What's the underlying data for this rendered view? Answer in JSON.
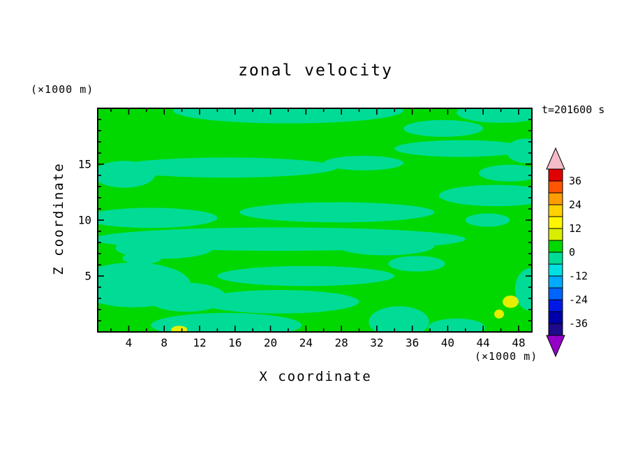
{
  "chart_data": {
    "type": "heatmap",
    "title": "zonal velocity",
    "time_annotation": "t=201600 s",
    "xlabel": "X coordinate",
    "ylabel": "Z coordinate",
    "x_unit_label": "(×1000 m)",
    "y_unit_label": "(×1000 m)",
    "xlim": [
      0.5,
      49.5
    ],
    "ylim": [
      0,
      20
    ],
    "x_ticks": [
      4,
      8,
      12,
      16,
      20,
      24,
      28,
      32,
      36,
      40,
      44,
      48
    ],
    "x_minor_tick_step": 2,
    "y_ticks": [
      5,
      10,
      15
    ],
    "y_minor_tick_step": 1,
    "grid": false,
    "legend_position": "right-colorbar",
    "contour_interval": 6,
    "colorbar": {
      "labels": [
        "36",
        "24",
        "12",
        "0",
        "-12",
        "-24",
        "-36"
      ],
      "over_color": "#f4bcc8",
      "under_color": "#9400c8",
      "segments": [
        {
          "range": [
            36,
            42
          ],
          "color": "#e10000"
        },
        {
          "range": [
            30,
            36
          ],
          "color": "#ff5500"
        },
        {
          "range": [
            24,
            30
          ],
          "color": "#ff9c00"
        },
        {
          "range": [
            18,
            24
          ],
          "color": "#ffd200"
        },
        {
          "range": [
            12,
            18
          ],
          "color": "#fff500"
        },
        {
          "range": [
            6,
            12
          ],
          "color": "#d8ee00"
        },
        {
          "range": [
            0,
            6
          ],
          "color": "#00d800"
        },
        {
          "range": [
            -6,
            0
          ],
          "color": "#00dc96"
        },
        {
          "range": [
            -12,
            -6
          ],
          "color": "#00e0e0"
        },
        {
          "range": [
            -18,
            -12
          ],
          "color": "#00aaff"
        },
        {
          "range": [
            -24,
            -18
          ],
          "color": "#0064ff"
        },
        {
          "range": [
            -30,
            -24
          ],
          "color": "#0018e6"
        },
        {
          "range": [
            -36,
            -30
          ],
          "color": "#0000aa"
        },
        {
          "range": [
            -42,
            -36
          ],
          "color": "#1e0a8c"
        }
      ]
    },
    "field": {
      "description": "Filled-contour zonal velocity u(x,z): background band 0..6 m/s (green), elongated shaded regions -6..0 m/s (spring green), small spots 6..12 m/s (yellow). Regions given as [x_center, z_center, x_radius, z_radius] in (×1000 m).",
      "background_band": [
        0,
        6
      ],
      "background_color": "#00d800",
      "negative_band": [
        -6,
        0
      ],
      "negative_color": "#00dc96",
      "negative_regions_xzrxrz": [
        [
          22,
          19.8,
          13,
          1.15
        ],
        [
          39.5,
          18.2,
          4.5,
          0.75
        ],
        [
          46,
          19.6,
          5,
          0.9
        ],
        [
          41.5,
          16.4,
          7.5,
          0.75
        ],
        [
          48.8,
          16.2,
          2.2,
          1.1
        ],
        [
          15,
          14.7,
          12.5,
          0.9
        ],
        [
          3.5,
          14.1,
          3.5,
          1.2
        ],
        [
          30.5,
          15.1,
          4.5,
          0.65
        ],
        [
          47,
          14.2,
          3.5,
          0.75
        ],
        [
          45.5,
          12.2,
          6.5,
          0.95
        ],
        [
          6.5,
          10.2,
          7.5,
          0.9
        ],
        [
          27.5,
          10.7,
          11,
          0.9
        ],
        [
          44.5,
          10,
          2.5,
          0.6
        ],
        [
          21,
          8.3,
          21,
          1.05
        ],
        [
          8,
          7.5,
          5.5,
          0.95
        ],
        [
          33,
          7.7,
          5.5,
          0.85
        ],
        [
          36.5,
          6.1,
          3.2,
          0.7
        ],
        [
          5.5,
          6.6,
          2.2,
          0.55
        ],
        [
          4.5,
          4.2,
          6.5,
          2
        ],
        [
          10.5,
          3.1,
          4.5,
          1.3
        ],
        [
          24,
          5,
          10,
          0.9
        ],
        [
          21,
          2.7,
          9,
          1.05
        ],
        [
          15,
          0.6,
          8.5,
          1.1
        ],
        [
          34.5,
          0.9,
          3.4,
          1.4
        ],
        [
          49.3,
          3.8,
          1.7,
          1.9
        ],
        [
          41,
          0.4,
          3.2,
          0.8
        ]
      ],
      "positive_spot_band": [
        6,
        12
      ],
      "positive_spot_color": "#e6ee00",
      "positive_spots_xzrxrz": [
        [
          47.1,
          2.7,
          0.9,
          0.55
        ],
        [
          45.8,
          1.6,
          0.55,
          0.4
        ],
        [
          9.7,
          0.2,
          0.9,
          0.35
        ]
      ]
    }
  }
}
